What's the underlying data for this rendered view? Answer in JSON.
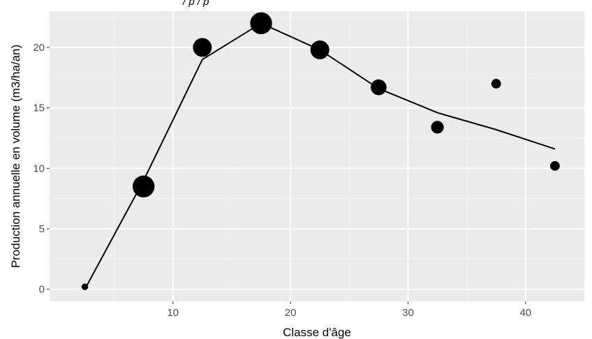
{
  "header_fragment": "/ p / p",
  "chart_data": {
    "type": "scatter",
    "xlabel": "Classe d'âge",
    "ylabel": "Production annuelle en volume (m3/ha/an)",
    "xlim": [
      -0.5,
      45
    ],
    "ylim": [
      -1,
      23
    ],
    "x_ticks": [
      10,
      20,
      30,
      40
    ],
    "x_tick_labels": [
      "10",
      "20",
      "30",
      "40"
    ],
    "y_ticks": [
      0,
      5,
      10,
      15,
      20
    ],
    "y_tick_labels": [
      "0",
      "5",
      "10",
      "15",
      "20"
    ],
    "grid": true,
    "legend": "none",
    "series": [
      {
        "type": "scatter",
        "x": [
          2.5,
          7.5,
          12.5,
          17.5,
          22.5,
          27.5,
          32.5,
          37.5,
          42.5
        ],
        "y": [
          0.2,
          8.5,
          20.0,
          22.0,
          19.8,
          16.7,
          13.4,
          17.0,
          10.2
        ],
        "size": [
          1,
          6,
          5,
          6,
          5,
          4,
          3,
          2,
          2
        ]
      },
      {
        "type": "line",
        "x": [
          2.5,
          7.5,
          12.5,
          17.5,
          22.5,
          27.5,
          32.5,
          37.5,
          42.5
        ],
        "y": [
          0.0,
          9.0,
          19.0,
          22.0,
          19.8,
          16.6,
          14.6,
          13.2,
          11.6
        ]
      }
    ],
    "colors": {
      "panel": "#ebebeb",
      "grid_major": "#ffffff",
      "grid_minor": "#f4f4f4",
      "marks": "#000000"
    }
  }
}
